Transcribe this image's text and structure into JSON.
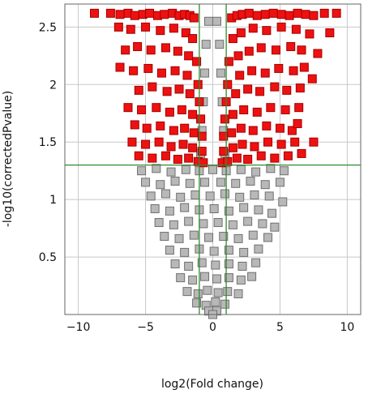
{
  "chart_data": {
    "type": "scatter",
    "title": "",
    "xlabel": "log2(Fold change)",
    "ylabel": "-log10(correctedPvalue)",
    "xlim": [
      -11,
      11
    ],
    "ylim": [
      0,
      2.7
    ],
    "xticks": [
      -10,
      -5,
      0,
      5,
      10
    ],
    "xtick_labels": [
      "−10",
      "−5",
      "0",
      "5",
      "10"
    ],
    "yticks": [
      0.5,
      1,
      1.5,
      2,
      2.5
    ],
    "ytick_labels": [
      "0.5",
      "1",
      "1.5",
      "2",
      "2.5"
    ],
    "grid": true,
    "marker": "square",
    "thresholds": {
      "fold_change_log2": [
        -1,
        1
      ],
      "neg_log10_p": 1.3
    },
    "colors": {
      "significant": "#ee1111",
      "significant_edge": "#a40000",
      "not_significant": "#b8b8b8",
      "not_significant_edge": "#707070",
      "threshold_line": "#2f8a2f",
      "grid": "#c8c8c8"
    },
    "series": [
      {
        "role": "significant",
        "points": [
          [
            -8.8,
            2.62
          ],
          [
            -7.6,
            2.62
          ],
          [
            -6.9,
            2.61
          ],
          [
            -6.3,
            2.62
          ],
          [
            -5.8,
            2.6
          ],
          [
            -5.2,
            2.61
          ],
          [
            -4.7,
            2.62
          ],
          [
            -4.1,
            2.6
          ],
          [
            -3.6,
            2.61
          ],
          [
            -3.0,
            2.62
          ],
          [
            -2.5,
            2.6
          ],
          [
            -2.1,
            2.61
          ],
          [
            -1.7,
            2.6
          ],
          [
            -1.4,
            2.58
          ],
          [
            1.4,
            2.58
          ],
          [
            1.8,
            2.6
          ],
          [
            2.2,
            2.61
          ],
          [
            2.7,
            2.62
          ],
          [
            3.3,
            2.6
          ],
          [
            3.9,
            2.61
          ],
          [
            4.5,
            2.62
          ],
          [
            5.1,
            2.61
          ],
          [
            5.7,
            2.6
          ],
          [
            6.3,
            2.62
          ],
          [
            6.9,
            2.61
          ],
          [
            7.5,
            2.6
          ],
          [
            8.3,
            2.62
          ],
          [
            9.2,
            2.62
          ],
          [
            -7.0,
            2.5
          ],
          [
            -6.1,
            2.48
          ],
          [
            -5.0,
            2.5
          ],
          [
            -3.9,
            2.47
          ],
          [
            -2.9,
            2.49
          ],
          [
            -2.0,
            2.45
          ],
          [
            -1.5,
            2.4
          ],
          [
            1.5,
            2.4
          ],
          [
            2.1,
            2.45
          ],
          [
            3.0,
            2.49
          ],
          [
            4.0,
            2.47
          ],
          [
            5.1,
            2.5
          ],
          [
            6.2,
            2.48
          ],
          [
            7.2,
            2.44
          ],
          [
            8.7,
            2.45
          ],
          [
            -6.5,
            2.3
          ],
          [
            -5.6,
            2.33
          ],
          [
            -4.6,
            2.3
          ],
          [
            -3.5,
            2.32
          ],
          [
            -2.6,
            2.29
          ],
          [
            -1.8,
            2.25
          ],
          [
            -1.2,
            2.2
          ],
          [
            1.2,
            2.2
          ],
          [
            1.9,
            2.25
          ],
          [
            2.7,
            2.29
          ],
          [
            3.6,
            2.32
          ],
          [
            4.7,
            2.3
          ],
          [
            5.8,
            2.33
          ],
          [
            6.6,
            2.3
          ],
          [
            7.8,
            2.27
          ],
          [
            -6.9,
            2.15
          ],
          [
            -5.9,
            2.12
          ],
          [
            -4.8,
            2.14
          ],
          [
            -3.8,
            2.1
          ],
          [
            -2.8,
            2.12
          ],
          [
            -1.9,
            2.08
          ],
          [
            -1.1,
            2.0
          ],
          [
            1.1,
            2.0
          ],
          [
            2.0,
            2.08
          ],
          [
            2.9,
            2.12
          ],
          [
            3.9,
            2.1
          ],
          [
            4.9,
            2.14
          ],
          [
            6.0,
            2.12
          ],
          [
            6.8,
            2.15
          ],
          [
            7.4,
            2.05
          ],
          [
            -5.5,
            1.95
          ],
          [
            -4.5,
            1.98
          ],
          [
            -3.4,
            1.94
          ],
          [
            -2.5,
            1.96
          ],
          [
            -1.7,
            1.92
          ],
          [
            -1.0,
            1.85
          ],
          [
            1.0,
            1.85
          ],
          [
            1.7,
            1.92
          ],
          [
            2.6,
            1.96
          ],
          [
            3.5,
            1.94
          ],
          [
            4.6,
            1.98
          ],
          [
            5.5,
            1.95
          ],
          [
            6.5,
            1.97
          ],
          [
            -6.3,
            1.8
          ],
          [
            -5.3,
            1.78
          ],
          [
            -4.2,
            1.8
          ],
          [
            -3.2,
            1.76
          ],
          [
            -2.3,
            1.78
          ],
          [
            -1.5,
            1.74
          ],
          [
            -0.9,
            1.7
          ],
          [
            0.9,
            1.7
          ],
          [
            1.5,
            1.74
          ],
          [
            2.3,
            1.78
          ],
          [
            3.3,
            1.76
          ],
          [
            4.3,
            1.8
          ],
          [
            5.4,
            1.78
          ],
          [
            6.4,
            1.8
          ],
          [
            -5.8,
            1.65
          ],
          [
            -4.9,
            1.62
          ],
          [
            -3.9,
            1.64
          ],
          [
            -2.9,
            1.6
          ],
          [
            -2.1,
            1.62
          ],
          [
            -1.4,
            1.58
          ],
          [
            -0.8,
            1.55
          ],
          [
            0.8,
            1.55
          ],
          [
            1.4,
            1.58
          ],
          [
            2.1,
            1.62
          ],
          [
            3.0,
            1.6
          ],
          [
            4.0,
            1.64
          ],
          [
            5.0,
            1.62
          ],
          [
            5.9,
            1.6
          ],
          [
            6.3,
            1.66
          ],
          [
            -6.0,
            1.5
          ],
          [
            -5.0,
            1.48
          ],
          [
            -4.0,
            1.5
          ],
          [
            -3.1,
            1.46
          ],
          [
            -2.2,
            1.48
          ],
          [
            -1.5,
            1.45
          ],
          [
            -0.8,
            1.42
          ],
          [
            0.8,
            1.42
          ],
          [
            1.5,
            1.45
          ],
          [
            2.2,
            1.48
          ],
          [
            3.1,
            1.46
          ],
          [
            4.1,
            1.5
          ],
          [
            5.1,
            1.48
          ],
          [
            6.1,
            1.5
          ],
          [
            7.5,
            1.5
          ],
          [
            -5.5,
            1.38
          ],
          [
            -4.5,
            1.36
          ],
          [
            -3.5,
            1.38
          ],
          [
            -2.6,
            1.35
          ],
          [
            -1.8,
            1.36
          ],
          [
            -1.1,
            1.33
          ],
          [
            -0.7,
            1.32
          ],
          [
            0.7,
            1.32
          ],
          [
            1.1,
            1.33
          ],
          [
            1.8,
            1.36
          ],
          [
            2.6,
            1.35
          ],
          [
            3.6,
            1.38
          ],
          [
            4.6,
            1.36
          ],
          [
            5.6,
            1.38
          ],
          [
            6.6,
            1.4
          ]
        ]
      },
      {
        "role": "not_significant",
        "points": [
          [
            -0.3,
            2.55
          ],
          [
            0.3,
            2.55
          ],
          [
            -0.5,
            2.35
          ],
          [
            0.5,
            2.35
          ],
          [
            -0.6,
            2.1
          ],
          [
            0.6,
            2.1
          ],
          [
            -0.7,
            1.85
          ],
          [
            0.7,
            1.85
          ],
          [
            -0.8,
            1.6
          ],
          [
            0.8,
            1.6
          ],
          [
            -0.9,
            1.4
          ],
          [
            0.9,
            1.4
          ],
          [
            -5.3,
            1.25
          ],
          [
            -4.2,
            1.27
          ],
          [
            -3.1,
            1.24
          ],
          [
            -2.0,
            1.26
          ],
          [
            -1.0,
            1.25
          ],
          [
            0.0,
            1.26
          ],
          [
            1.0,
            1.25
          ],
          [
            2.1,
            1.26
          ],
          [
            3.2,
            1.24
          ],
          [
            4.3,
            1.27
          ],
          [
            5.3,
            1.25
          ],
          [
            -5.0,
            1.15
          ],
          [
            -3.9,
            1.13
          ],
          [
            -2.8,
            1.16
          ],
          [
            -1.7,
            1.14
          ],
          [
            -0.6,
            1.15
          ],
          [
            0.6,
            1.15
          ],
          [
            1.7,
            1.14
          ],
          [
            2.8,
            1.16
          ],
          [
            3.9,
            1.13
          ],
          [
            5.0,
            1.15
          ],
          [
            -4.6,
            1.03
          ],
          [
            -3.5,
            1.05
          ],
          [
            -2.4,
            1.02
          ],
          [
            -1.3,
            1.04
          ],
          [
            -0.2,
            1.03
          ],
          [
            0.9,
            1.05
          ],
          [
            2.0,
            1.02
          ],
          [
            3.1,
            1.04
          ],
          [
            4.2,
            1.03
          ],
          [
            5.2,
            0.98
          ],
          [
            -4.3,
            0.92
          ],
          [
            -3.2,
            0.9
          ],
          [
            -2.1,
            0.93
          ],
          [
            -1.0,
            0.91
          ],
          [
            0.1,
            0.92
          ],
          [
            1.2,
            0.9
          ],
          [
            2.3,
            0.93
          ],
          [
            3.4,
            0.91
          ],
          [
            4.4,
            0.88
          ],
          [
            -4.0,
            0.8
          ],
          [
            -2.9,
            0.78
          ],
          [
            -1.8,
            0.81
          ],
          [
            -0.7,
            0.79
          ],
          [
            0.4,
            0.8
          ],
          [
            1.5,
            0.78
          ],
          [
            2.6,
            0.81
          ],
          [
            3.7,
            0.79
          ],
          [
            4.6,
            0.76
          ],
          [
            -3.6,
            0.68
          ],
          [
            -2.5,
            0.66
          ],
          [
            -1.4,
            0.69
          ],
          [
            -0.3,
            0.67
          ],
          [
            0.8,
            0.68
          ],
          [
            1.9,
            0.66
          ],
          [
            3.0,
            0.69
          ],
          [
            4.1,
            0.67
          ],
          [
            -3.2,
            0.56
          ],
          [
            -2.1,
            0.54
          ],
          [
            -1.0,
            0.57
          ],
          [
            0.1,
            0.55
          ],
          [
            1.2,
            0.56
          ],
          [
            2.3,
            0.54
          ],
          [
            3.4,
            0.57
          ],
          [
            -2.8,
            0.44
          ],
          [
            -1.8,
            0.42
          ],
          [
            -0.8,
            0.45
          ],
          [
            0.2,
            0.43
          ],
          [
            1.2,
            0.44
          ],
          [
            2.2,
            0.42
          ],
          [
            3.2,
            0.45
          ],
          [
            -2.4,
            0.32
          ],
          [
            -1.5,
            0.3
          ],
          [
            -0.6,
            0.33
          ],
          [
            0.3,
            0.31
          ],
          [
            1.2,
            0.32
          ],
          [
            2.1,
            0.3
          ],
          [
            2.9,
            0.33
          ],
          [
            -1.9,
            0.2
          ],
          [
            -1.1,
            0.18
          ],
          [
            -0.4,
            0.21
          ],
          [
            0.4,
            0.19
          ],
          [
            1.1,
            0.2
          ],
          [
            1.9,
            0.18
          ],
          [
            -1.2,
            0.1
          ],
          [
            -0.5,
            0.08
          ],
          [
            0.2,
            0.11
          ],
          [
            0.9,
            0.09
          ],
          [
            -0.3,
            0.03
          ],
          [
            0.3,
            0.03
          ],
          [
            0.0,
            0.0
          ]
        ]
      }
    ]
  }
}
